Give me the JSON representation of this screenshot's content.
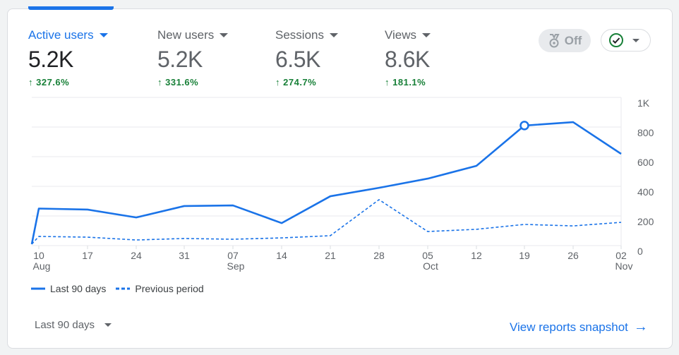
{
  "metrics": [
    {
      "label": "Active users",
      "value": "5.2K",
      "change": "327.6%",
      "active": true
    },
    {
      "label": "New users",
      "value": "5.2K",
      "change": "331.6%"
    },
    {
      "label": "Sessions",
      "value": "6.5K",
      "change": "274.7%"
    },
    {
      "label": "Views",
      "value": "8.6K",
      "change": "181.1%"
    }
  ],
  "toolbar": {
    "insights_toggle": "Off",
    "insights_icon": "medal-icon",
    "status_icon": "check-circle-icon"
  },
  "colors": {
    "accent": "#1a73e8",
    "positive": "#188038"
  },
  "chart_data": {
    "type": "line",
    "x": [
      "Aug 9",
      "10 Aug",
      "17",
      "24",
      "31",
      "07 Sep",
      "14",
      "21",
      "28",
      "05 Oct",
      "12",
      "19",
      "26",
      "02 Nov"
    ],
    "x_tick_labels": [
      {
        "day": "10",
        "month": "Aug"
      },
      {
        "day": "17"
      },
      {
        "day": "24"
      },
      {
        "day": "31"
      },
      {
        "day": "07",
        "month": "Sep"
      },
      {
        "day": "14"
      },
      {
        "day": "21"
      },
      {
        "day": "28"
      },
      {
        "day": "05",
        "month": "Oct"
      },
      {
        "day": "12"
      },
      {
        "day": "19"
      },
      {
        "day": "26"
      },
      {
        "day": "02",
        "month": "Nov"
      }
    ],
    "y_tick_labels": [
      "0",
      "200",
      "400",
      "600",
      "800",
      "1K"
    ],
    "ylim": [
      0,
      1000
    ],
    "grid": true,
    "series": [
      {
        "name": "Last 90 days",
        "style": "solid",
        "values": [
          10,
          250,
          243,
          190,
          267,
          271,
          152,
          333,
          390,
          452,
          538,
          810,
          833,
          619
        ],
        "highlight_index": 11
      },
      {
        "name": "Previous period",
        "style": "dashed",
        "values": [
          10,
          62,
          57,
          38,
          48,
          43,
          52,
          67,
          310,
          95,
          110,
          143,
          133,
          157
        ]
      }
    ],
    "legend": "bottom-left"
  },
  "footer": {
    "range": "Last 90 days",
    "link": "View reports snapshot"
  }
}
